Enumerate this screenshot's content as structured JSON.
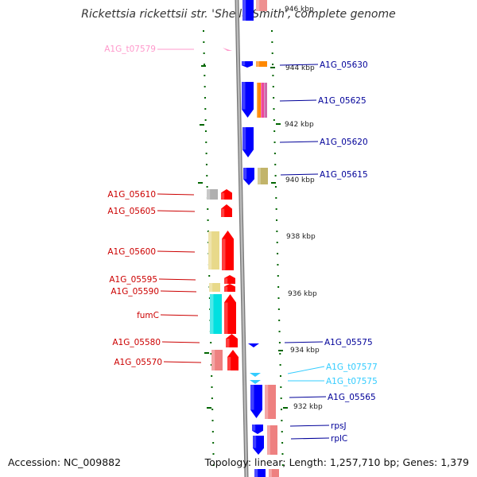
{
  "title": "Rickettsia rickettsii str. 'Sheila Smith', complete genome",
  "footer": {
    "accession": "Accession: NC_009882",
    "topology": "Topology: linear; Length: 1,257,710 bp; Genes: 1,379"
  },
  "colors": {
    "forward_gene": "#ff0000",
    "reverse_gene": "#0000ff",
    "trna_forward": "#ff99cc",
    "trna_reverse": "#33ccff",
    "tick_green": "#006600",
    "backbone": "#999999"
  },
  "kbp_labels": [
    "946 kbp",
    "944 kbp",
    "942 kbp",
    "940 kbp",
    "938 kbp",
    "936 kbp",
    "934 kbp",
    "932 kbp"
  ],
  "left_genes": [
    {
      "label": "A1G_t07579",
      "color": "#ff99cc"
    },
    {
      "label": "A1G_05610",
      "color": "#cc0000"
    },
    {
      "label": "A1G_05605",
      "color": "#cc0000"
    },
    {
      "label": "A1G_05600",
      "color": "#cc0000"
    },
    {
      "label": "A1G_05595",
      "color": "#cc0000"
    },
    {
      "label": "A1G_05590",
      "color": "#cc0000"
    },
    {
      "label": "fumC",
      "color": "#cc0000"
    },
    {
      "label": "A1G_05580",
      "color": "#cc0000"
    },
    {
      "label": "A1G_05570",
      "color": "#cc0000"
    }
  ],
  "right_genes": [
    {
      "label": "A1G_05630",
      "color": "#000099"
    },
    {
      "label": "A1G_05625",
      "color": "#000099"
    },
    {
      "label": "A1G_05620",
      "color": "#000099"
    },
    {
      "label": "A1G_05615",
      "color": "#000099"
    },
    {
      "label": "A1G_05575",
      "color": "#000099"
    },
    {
      "label": "A1G_t07577",
      "color": "#33ccff"
    },
    {
      "label": "A1G_t07575",
      "color": "#33ccff"
    },
    {
      "label": "A1G_05565",
      "color": "#000099"
    },
    {
      "label": "rpsJ",
      "color": "#000099"
    },
    {
      "label": "rplC",
      "color": "#000099"
    }
  ]
}
